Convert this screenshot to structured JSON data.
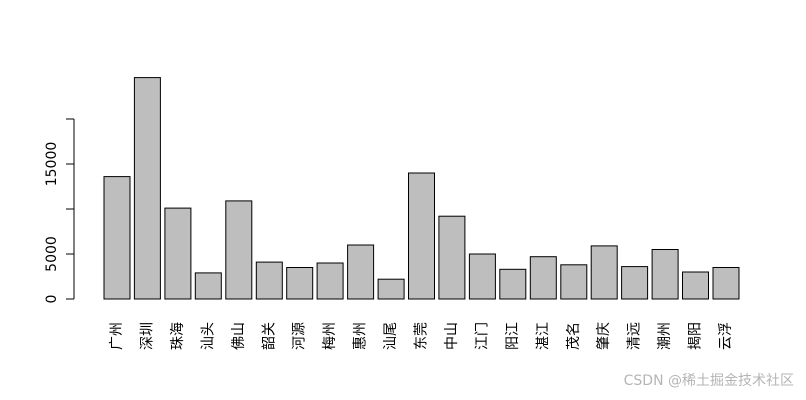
{
  "chart_data": {
    "type": "bar",
    "categories": [
      "广州",
      "深圳",
      "珠海",
      "汕头",
      "佛山",
      "韶关",
      "河源",
      "梅州",
      "惠州",
      "汕尾",
      "东莞",
      "中山",
      "江门",
      "阳江",
      "湛江",
      "茂名",
      "肇庆",
      "清远",
      "潮州",
      "揭阳",
      "云浮"
    ],
    "values": [
      13600,
      24600,
      10100,
      2900,
      10900,
      4100,
      3500,
      4000,
      6000,
      2200,
      14000,
      9200,
      5000,
      3300,
      4700,
      3800,
      5900,
      3600,
      5500,
      3000,
      3500
    ],
    "title": "",
    "xlabel": "",
    "ylabel": "",
    "yticks": [
      0,
      5000,
      15000
    ],
    "ylim": [
      0,
      25000
    ],
    "grid": false,
    "legend": "none",
    "bar_color": "#bebebe",
    "bar_border": "#000000"
  },
  "watermark": "CSDN @稀土掘金技术社区"
}
